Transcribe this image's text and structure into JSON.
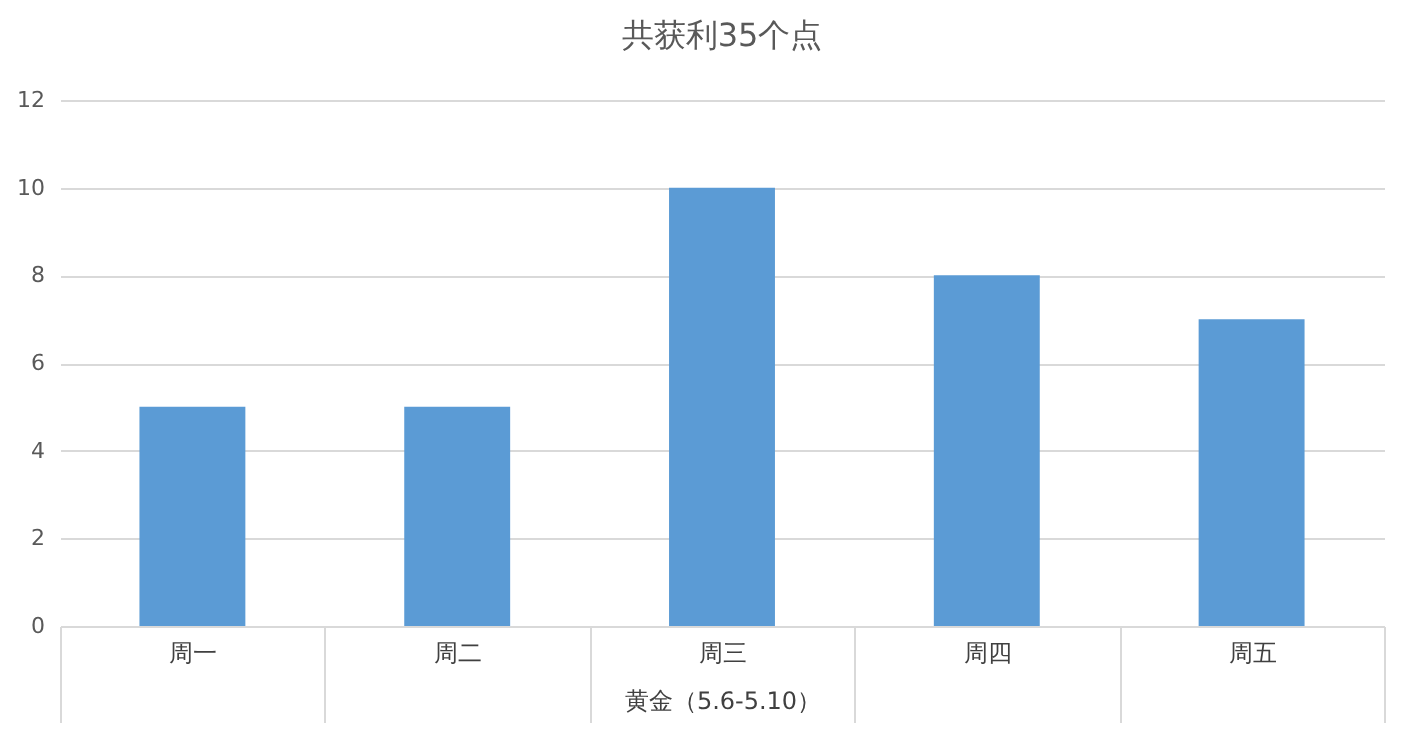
{
  "chart_data": {
    "type": "bar",
    "title": "共获利35个点",
    "xlabel": "黄金（5.6-5.10）",
    "categories": [
      "周一",
      "周二",
      "周三",
      "周四",
      "周五"
    ],
    "values": [
      5,
      5,
      10,
      8,
      7
    ],
    "color": "#5b9bd5",
    "ylim": [
      0,
      12
    ],
    "yticks": [
      0,
      2,
      4,
      6,
      8,
      10,
      12
    ],
    "grid": "y"
  }
}
